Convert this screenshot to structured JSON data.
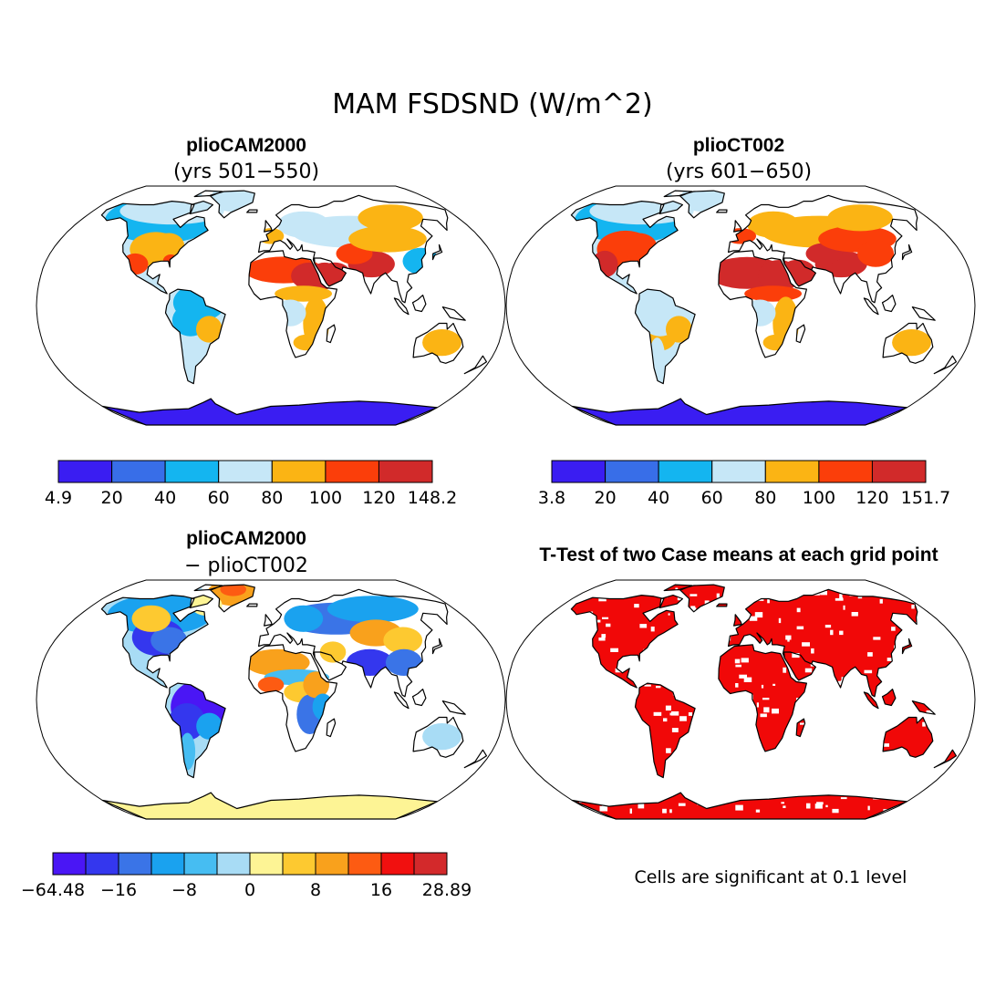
{
  "title": "MAM FSDSND (W/m^2)",
  "panels": [
    {
      "title": "plioCAM2000",
      "subtitle": "(yrs 501−550)",
      "colorbar": {
        "labels": [
          "4.9",
          "20",
          "40",
          "60",
          "80",
          "100",
          "120",
          "148.2"
        ],
        "colors": [
          "#3a1df2",
          "#386ee8",
          "#14b5f0",
          "#c6e7f7",
          "#fbb414",
          "#fb3e0a",
          "#d12a2a"
        ]
      }
    },
    {
      "title": "plioCT002",
      "subtitle": "(yrs 601−650)",
      "colorbar": {
        "labels": [
          "3.8",
          "20",
          "40",
          "60",
          "80",
          "100",
          "120",
          "151.7"
        ],
        "colors": [
          "#3a1df2",
          "#386ee8",
          "#14b5f0",
          "#c6e7f7",
          "#fbb414",
          "#fb3e0a",
          "#d12a2a"
        ]
      }
    },
    {
      "title": "plioCAM2000",
      "subtitle": "− plioCT002",
      "colorbar": {
        "labels": [
          "−64.48",
          "−16",
          "−8",
          "0",
          "8",
          "16",
          "28.89"
        ],
        "colors": [
          "#4a16f5",
          "#3437ee",
          "#3a74e7",
          "#1aa2ef",
          "#46bdf2",
          "#a8dcf5",
          "#fdf495",
          "#fdc930",
          "#f9a11c",
          "#fd5b12",
          "#f1100f",
          "#d3292b"
        ]
      }
    },
    {
      "title": "T-Test of two Case means at each grid point",
      "note": "Cells are significant at 0.1 level",
      "significant_color": "#f10808"
    }
  ],
  "chart_data": [
    {
      "type": "heatmap",
      "title": "plioCAM2000 (yrs 501−550)",
      "variable": "FSDSND",
      "units": "W/m^2",
      "season": "MAM",
      "range": [
        4.9,
        148.2
      ],
      "levels": [
        4.9,
        20,
        40,
        60,
        80,
        100,
        120,
        148.2
      ]
    },
    {
      "type": "heatmap",
      "title": "plioCT002 (yrs 601−650)",
      "variable": "FSDSND",
      "units": "W/m^2",
      "season": "MAM",
      "range": [
        3.8,
        151.7
      ],
      "levels": [
        3.8,
        20,
        40,
        60,
        80,
        100,
        120,
        151.7
      ]
    },
    {
      "type": "heatmap",
      "title": "plioCAM2000 − plioCT002",
      "variable": "FSDSND difference",
      "units": "W/m^2",
      "range": [
        -64.48,
        28.89
      ],
      "labelled_levels": [
        -64.48,
        -16,
        -8,
        0,
        8,
        16,
        28.89
      ]
    },
    {
      "type": "heatmap",
      "title": "T-Test of two Case means at each grid point",
      "significance_level": 0.1
    }
  ]
}
